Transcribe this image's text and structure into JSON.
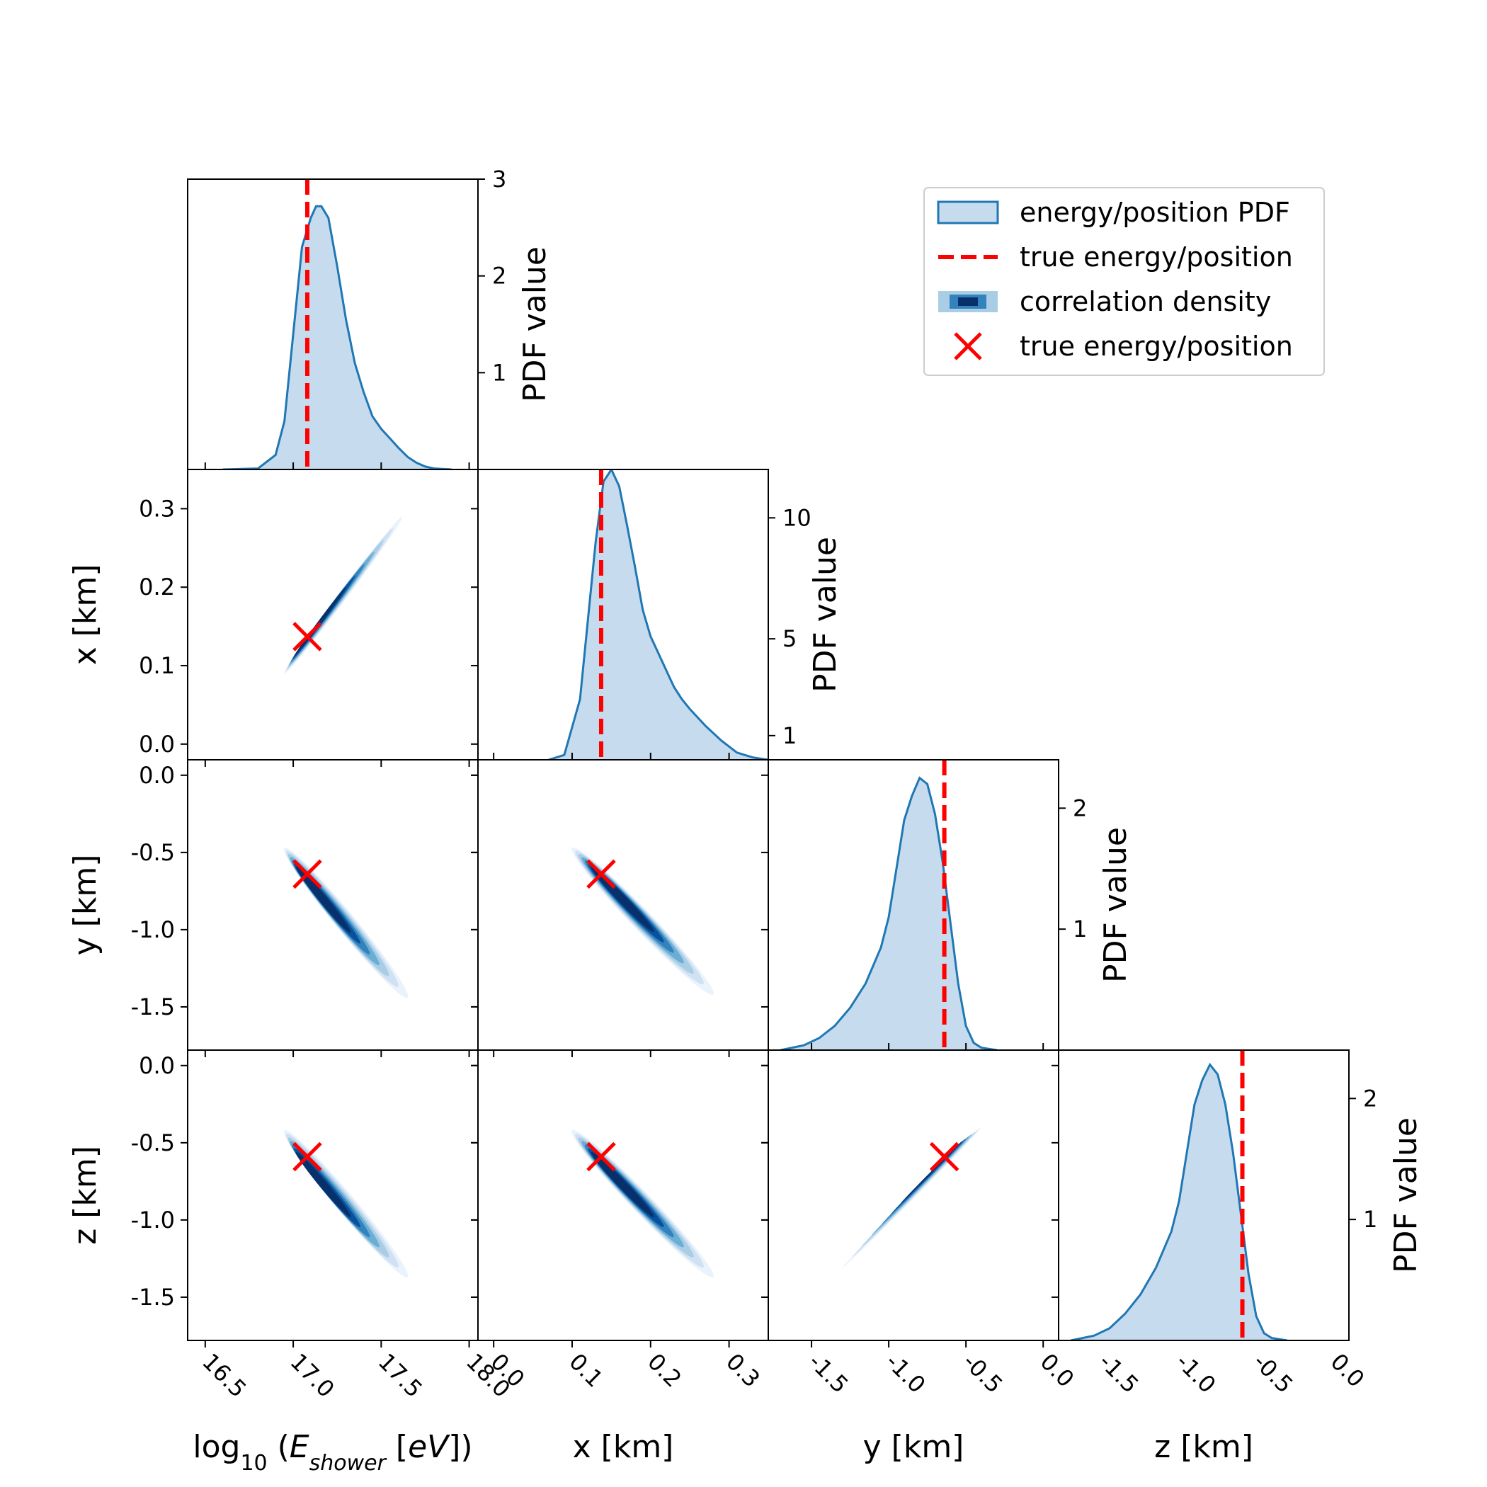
{
  "chart_data": {
    "type": "corner",
    "title": "",
    "parameters": [
      {
        "key": "E",
        "label_prefix": "log",
        "label_sub": "10",
        "label_open": " (",
        "label_var": "E",
        "label_var_sub": "shower",
        "label_unit_open": " [",
        "label_unit": "eV",
        "label_close": "])",
        "range": [
          16.4,
          18.05
        ],
        "ticks": [
          16.5,
          17.0,
          17.5,
          18.0
        ],
        "tick_labels": [
          "16.5",
          "17.0",
          "17.5",
          "18.0"
        ],
        "true": 17.08
      },
      {
        "key": "x",
        "label": "x [km]",
        "range": [
          -0.02,
          0.35
        ],
        "ticks": [
          0.0,
          0.1,
          0.2,
          0.3
        ],
        "tick_labels": [
          "0.0",
          "0.1",
          "0.2",
          "0.3"
        ],
        "true": 0.137
      },
      {
        "key": "y",
        "label": "y [km]",
        "range": [
          -1.78,
          0.1
        ],
        "ticks": [
          -1.5,
          -1.0,
          -0.5,
          0.0
        ],
        "tick_labels": [
          "-1.5",
          "-1.0",
          "-0.5",
          "0.0"
        ],
        "true": -0.64
      },
      {
        "key": "z",
        "label": "z [km]",
        "range": [
          -1.78,
          0.1
        ],
        "ticks": [
          -1.5,
          -1.0,
          -0.5,
          0.0
        ],
        "tick_labels": [
          "-1.5",
          "-1.0",
          "-0.5",
          "0.0"
        ],
        "true": -0.59
      }
    ],
    "marginals": [
      {
        "param": "E",
        "ylabel": "PDF value",
        "ylim": [
          0,
          3
        ],
        "yticks": [
          1,
          2,
          3
        ],
        "ytick_labels": [
          "1",
          "2",
          "3"
        ],
        "x": [
          16.6,
          16.8,
          16.9,
          16.95,
          17.0,
          17.05,
          17.1,
          17.13,
          17.16,
          17.2,
          17.25,
          17.3,
          17.35,
          17.4,
          17.45,
          17.5,
          17.55,
          17.6,
          17.65,
          17.7,
          17.75,
          17.8,
          17.9
        ],
        "y": [
          0,
          0.01,
          0.15,
          0.5,
          1.4,
          2.3,
          2.6,
          2.72,
          2.72,
          2.6,
          2.1,
          1.55,
          1.1,
          0.8,
          0.55,
          0.42,
          0.32,
          0.22,
          0.13,
          0.07,
          0.03,
          0.01,
          0
        ]
      },
      {
        "param": "x",
        "ylabel": "PDF value",
        "ylim": [
          0,
          12
        ],
        "yticks": [
          1,
          5,
          10
        ],
        "ytick_labels": [
          "1",
          "5",
          "10"
        ],
        "x": [
          0.07,
          0.09,
          0.11,
          0.13,
          0.14,
          0.15,
          0.16,
          0.17,
          0.18,
          0.19,
          0.2,
          0.21,
          0.22,
          0.23,
          0.24,
          0.25,
          0.27,
          0.29,
          0.31,
          0.33,
          0.35
        ],
        "y": [
          0,
          0.2,
          2.5,
          9.0,
          11.5,
          12.0,
          11.3,
          9.7,
          8.0,
          6.2,
          5.1,
          4.4,
          3.7,
          3.0,
          2.5,
          2.1,
          1.4,
          0.8,
          0.3,
          0.1,
          0
        ]
      },
      {
        "param": "y",
        "ylabel": "PDF value",
        "ylim": [
          0,
          2.4
        ],
        "yticks": [
          1,
          2
        ],
        "ytick_labels": [
          "1",
          "2"
        ],
        "x": [
          -1.7,
          -1.55,
          -1.45,
          -1.35,
          -1.25,
          -1.15,
          -1.05,
          -1.0,
          -0.95,
          -0.9,
          -0.85,
          -0.8,
          -0.75,
          -0.7,
          -0.65,
          -0.6,
          -0.55,
          -0.5,
          -0.45,
          -0.4,
          -0.35,
          -0.3
        ],
        "y": [
          0,
          0.04,
          0.1,
          0.2,
          0.35,
          0.55,
          0.85,
          1.1,
          1.5,
          1.9,
          2.1,
          2.25,
          2.2,
          1.95,
          1.55,
          1.05,
          0.55,
          0.2,
          0.06,
          0.02,
          0.01,
          0
        ]
      },
      {
        "param": "z",
        "ylabel": "PDF value",
        "ylim": [
          0,
          2.4
        ],
        "yticks": [
          1,
          2
        ],
        "ytick_labels": [
          "1",
          "2"
        ],
        "x": [
          -1.7,
          -1.55,
          -1.45,
          -1.35,
          -1.25,
          -1.15,
          -1.05,
          -1.0,
          -0.95,
          -0.9,
          -0.85,
          -0.8,
          -0.75,
          -0.7,
          -0.65,
          -0.6,
          -0.55,
          -0.5,
          -0.45,
          -0.4,
          -0.35,
          -0.3
        ],
        "y": [
          0,
          0.04,
          0.1,
          0.22,
          0.38,
          0.6,
          0.9,
          1.15,
          1.55,
          1.95,
          2.15,
          2.28,
          2.2,
          1.95,
          1.55,
          1.05,
          0.55,
          0.2,
          0.06,
          0.02,
          0.01,
          0
        ]
      }
    ],
    "correlations": [
      {
        "x": "E",
        "y": "x",
        "peak": [
          17.13,
          0.15
        ],
        "end_low": [
          16.95,
          0.09
        ],
        "end_high": [
          17.62,
          0.29
        ],
        "spread": 0.022
      },
      {
        "x": "E",
        "y": "y",
        "peak": [
          17.15,
          -0.78
        ],
        "end_low": [
          16.95,
          -0.47
        ],
        "end_high": [
          17.65,
          -1.44
        ],
        "spread": 0.05
      },
      {
        "x": "x",
        "y": "y",
        "peak": [
          0.16,
          -0.78
        ],
        "end_low": [
          0.1,
          -0.47
        ],
        "end_high": [
          0.28,
          -1.42
        ],
        "spread": 0.05
      },
      {
        "x": "E",
        "y": "z",
        "peak": [
          17.15,
          -0.75
        ],
        "end_low": [
          16.95,
          -0.42
        ],
        "end_high": [
          17.65,
          -1.37
        ],
        "spread": 0.05
      },
      {
        "x": "x",
        "y": "z",
        "peak": [
          0.16,
          -0.75
        ],
        "end_low": [
          0.1,
          -0.42
        ],
        "end_high": [
          0.28,
          -1.37
        ],
        "spread": 0.05
      },
      {
        "x": "y",
        "y": "z",
        "peak": [
          -0.7,
          -0.66
        ],
        "end_low": [
          -1.3,
          -1.31
        ],
        "end_high": [
          -0.4,
          -0.4
        ],
        "spread": 0.006
      }
    ],
    "legend": {
      "placement": "top-right",
      "entries": [
        {
          "kind": "pdf",
          "label": "energy/position PDF"
        },
        {
          "kind": "true-line",
          "label": "true energy/position"
        },
        {
          "kind": "density",
          "label": "correlation density"
        },
        {
          "kind": "true-marker",
          "label": "true energy/position"
        }
      ]
    },
    "colors": {
      "pdf_line": "#1f77b4",
      "pdf_fill": "#c6dbed",
      "truth": "#ff0000",
      "density": [
        "#eaf2fb",
        "#cfe1f2",
        "#a9cde5",
        "#6aaed6",
        "#3282be",
        "#08519c",
        "#08306b"
      ]
    }
  }
}
